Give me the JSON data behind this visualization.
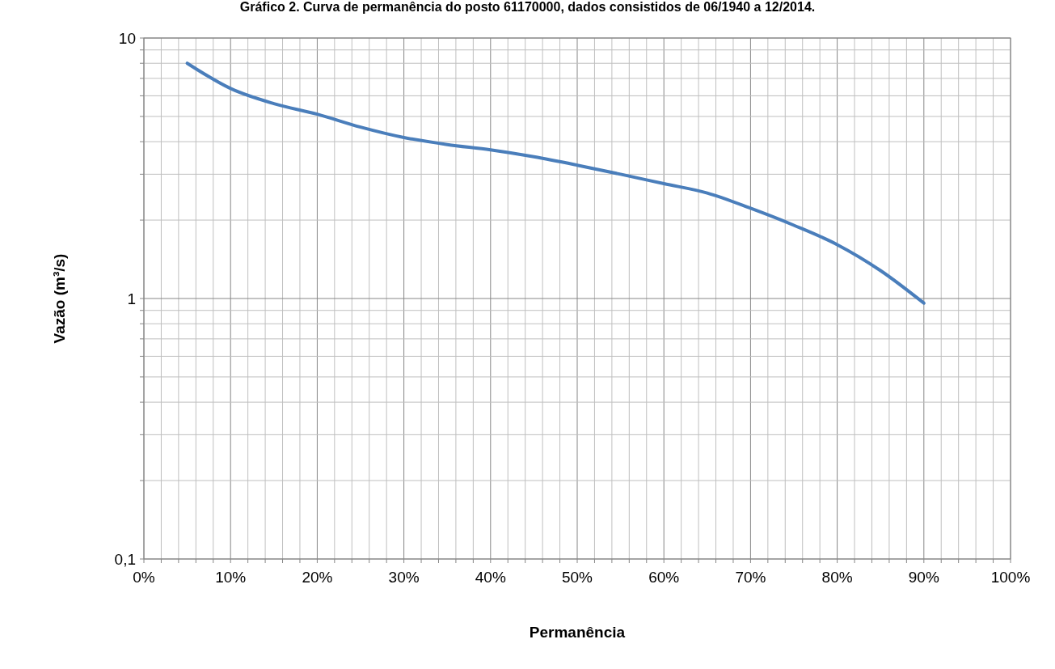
{
  "chart_data": {
    "type": "line",
    "title": "Gráfico 2. Curva de permanência do posto 61170000, dados consistidos de 06/1940 a 12/2014.",
    "xlabel": "Permanência",
    "ylabel": "Vazão (m³/s)",
    "log": "y",
    "grid": true,
    "marker": "none",
    "line_style": "solid",
    "x": [
      5,
      10,
      15,
      20,
      25,
      30,
      35,
      40,
      45,
      50,
      55,
      60,
      65,
      70,
      75,
      80,
      85,
      90
    ],
    "series": [
      {
        "color": "#4a7ebb",
        "values": [
          8.0,
          6.4,
          5.6,
          5.1,
          4.55,
          4.15,
          3.9,
          3.72,
          3.5,
          3.25,
          3.0,
          2.76,
          2.54,
          2.22,
          1.91,
          1.61,
          1.28,
          0.96
        ]
      }
    ],
    "xlim": [
      0,
      100
    ],
    "xticks": [
      {
        "value": 0,
        "label": "0%"
      },
      {
        "value": 2,
        "label": null
      },
      {
        "value": 4,
        "label": null
      },
      {
        "value": 6,
        "label": null
      },
      {
        "value": 8,
        "label": null
      },
      {
        "value": 10,
        "label": "10%"
      },
      {
        "value": 12,
        "label": null
      },
      {
        "value": 14,
        "label": null
      },
      {
        "value": 16,
        "label": null
      },
      {
        "value": 18,
        "label": null
      },
      {
        "value": 20,
        "label": "20%"
      },
      {
        "value": 22,
        "label": null
      },
      {
        "value": 24,
        "label": null
      },
      {
        "value": 26,
        "label": null
      },
      {
        "value": 28,
        "label": null
      },
      {
        "value": 30,
        "label": "30%"
      },
      {
        "value": 32,
        "label": null
      },
      {
        "value": 34,
        "label": null
      },
      {
        "value": 36,
        "label": null
      },
      {
        "value": 38,
        "label": null
      },
      {
        "value": 40,
        "label": "40%"
      },
      {
        "value": 42,
        "label": null
      },
      {
        "value": 44,
        "label": null
      },
      {
        "value": 46,
        "label": null
      },
      {
        "value": 48,
        "label": null
      },
      {
        "value": 50,
        "label": "50%"
      },
      {
        "value": 52,
        "label": null
      },
      {
        "value": 54,
        "label": null
      },
      {
        "value": 56,
        "label": null
      },
      {
        "value": 58,
        "label": null
      },
      {
        "value": 60,
        "label": "60%"
      },
      {
        "value": 62,
        "label": null
      },
      {
        "value": 64,
        "label": null
      },
      {
        "value": 66,
        "label": null
      },
      {
        "value": 68,
        "label": null
      },
      {
        "value": 70,
        "label": "70%"
      },
      {
        "value": 72,
        "label": null
      },
      {
        "value": 74,
        "label": null
      },
      {
        "value": 76,
        "label": null
      },
      {
        "value": 78,
        "label": null
      },
      {
        "value": 80,
        "label": "80%"
      },
      {
        "value": 82,
        "label": null
      },
      {
        "value": 84,
        "label": null
      },
      {
        "value": 86,
        "label": null
      },
      {
        "value": 88,
        "label": null
      },
      {
        "value": 90,
        "label": "90%"
      },
      {
        "value": 92,
        "label": null
      },
      {
        "value": 94,
        "label": null
      },
      {
        "value": 96,
        "label": null
      },
      {
        "value": 98,
        "label": null
      },
      {
        "value": 100,
        "label": "100%"
      }
    ],
    "ylim": [
      0.1,
      10
    ],
    "yticks": [
      {
        "value": 0.1,
        "label": "0,1"
      },
      {
        "value": 0.2,
        "label": null
      },
      {
        "value": 0.3,
        "label": null
      },
      {
        "value": 0.4,
        "label": null
      },
      {
        "value": 0.5,
        "label": null
      },
      {
        "value": 0.6,
        "label": null
      },
      {
        "value": 0.7,
        "label": null
      },
      {
        "value": 0.8,
        "label": null
      },
      {
        "value": 0.9,
        "label": null
      },
      {
        "value": 1,
        "label": "1"
      },
      {
        "value": 2,
        "label": null
      },
      {
        "value": 3,
        "label": null
      },
      {
        "value": 4,
        "label": null
      },
      {
        "value": 5,
        "label": null
      },
      {
        "value": 6,
        "label": null
      },
      {
        "value": 7,
        "label": null
      },
      {
        "value": 8,
        "label": null
      },
      {
        "value": 9,
        "label": null
      },
      {
        "value": 10,
        "label": "10"
      }
    ]
  }
}
